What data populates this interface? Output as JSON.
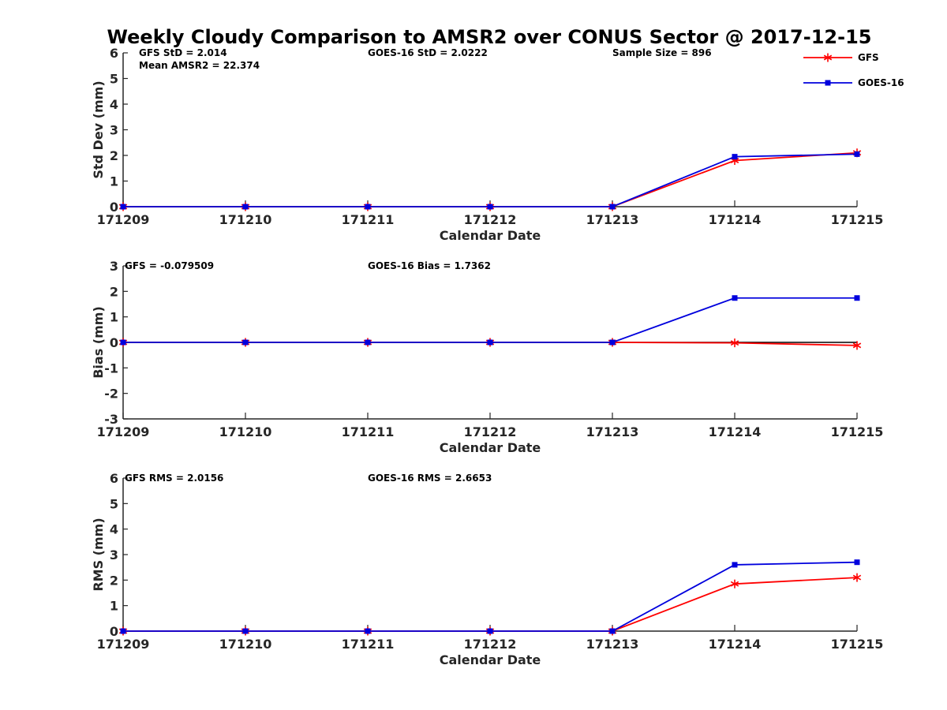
{
  "title": "Weekly Cloudy Comparison to AMSR2 over CONUS Sector @ 2017-12-15",
  "legend": [
    {
      "name": "GFS",
      "color": "#ff0000",
      "marker": "asterisk"
    },
    {
      "name": "GOES-16",
      "color": "#0000dd",
      "marker": "square"
    }
  ],
  "chart_data": [
    {
      "type": "line",
      "ylabel": "Std Dev (mm)",
      "xlabel": "Calendar Date",
      "categories": [
        "171209",
        "171210",
        "171211",
        "171212",
        "171213",
        "171214",
        "171215"
      ],
      "ylim": [
        0,
        6
      ],
      "yticks": [
        "0",
        "1",
        "2",
        "3",
        "4",
        "5",
        "6"
      ],
      "series": [
        {
          "name": "GFS",
          "values": [
            0,
            0,
            0,
            0,
            0,
            1.8,
            2.1
          ]
        },
        {
          "name": "GOES-16",
          "values": [
            0,
            0,
            0,
            0,
            0,
            1.95,
            2.05
          ]
        }
      ],
      "annotations": {
        "left": "GFS StD = 2.014",
        "left2": "Mean AMSR2 = 22.374",
        "middle": "GOES-16 StD = 2.0222",
        "right": "Sample Size = 896"
      }
    },
    {
      "type": "line",
      "ylabel": "Bias (mm)",
      "xlabel": "Calendar Date",
      "categories": [
        "171209",
        "171210",
        "171211",
        "171212",
        "171213",
        "171214",
        "171215"
      ],
      "ylim": [
        -3,
        3
      ],
      "yticks": [
        "-3",
        "-2",
        "-1",
        "0",
        "1",
        "2",
        "3"
      ],
      "zero_line": true,
      "series": [
        {
          "name": "GFS",
          "values": [
            0,
            0,
            0,
            0,
            0,
            -0.02,
            -0.12
          ]
        },
        {
          "name": "GOES-16",
          "values": [
            0,
            0,
            0,
            0,
            0,
            1.74,
            1.74
          ]
        }
      ],
      "annotations": {
        "left": "GFS = -0.079509",
        "middle": "GOES-16 Bias  = 1.7362"
      }
    },
    {
      "type": "line",
      "ylabel": "RMS (mm)",
      "xlabel": "Calendar Date",
      "categories": [
        "171209",
        "171210",
        "171211",
        "171212",
        "171213",
        "171214",
        "171215"
      ],
      "ylim": [
        0,
        6
      ],
      "yticks": [
        "0",
        "1",
        "2",
        "3",
        "4",
        "5",
        "6"
      ],
      "series": [
        {
          "name": "GFS",
          "values": [
            0,
            0,
            0,
            0,
            0,
            1.85,
            2.1
          ]
        },
        {
          "name": "GOES-16",
          "values": [
            0,
            0,
            0,
            0,
            0,
            2.6,
            2.7
          ]
        }
      ],
      "annotations": {
        "left": "GFS RMS = 2.0156",
        "middle": "GOES-16 RMS = 2.6653"
      }
    }
  ]
}
